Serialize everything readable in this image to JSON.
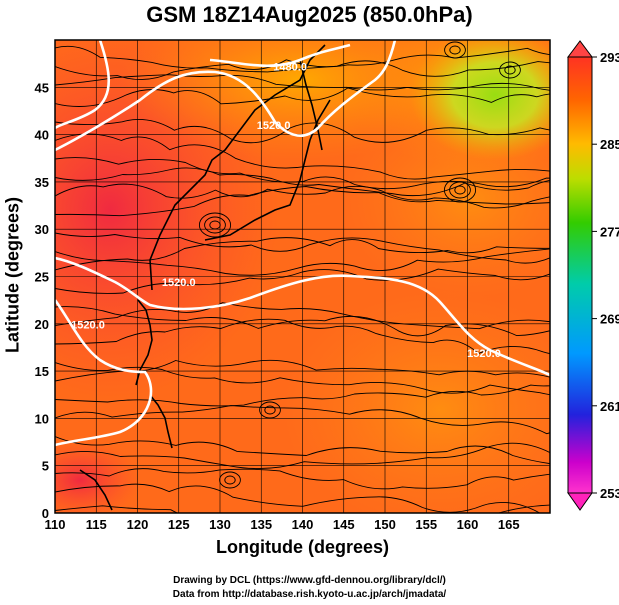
{
  "title": "GSM 18Z14Aug2025 (850.0hPa)",
  "xlabel": "Longitude (degrees)",
  "ylabel": "Latitude  (degrees)",
  "credits": {
    "line1": "Drawing by DCL (https://www.gfd-dennou.org/library/dcl/)",
    "line2": "Data from http://database.rish.kyoto-u.ac.jp/arch/jmadata/"
  },
  "chart_data": {
    "type": "heatmap",
    "variable": "temperature with geopotential height contours and wind streamlines",
    "xlim": [
      110,
      170
    ],
    "ylim": [
      0,
      50
    ],
    "xticks": [
      "110",
      "115",
      "120",
      "125",
      "130",
      "135",
      "140",
      "145",
      "150",
      "155",
      "160",
      "165"
    ],
    "yticks": [
      "0",
      "5",
      "10",
      "15",
      "20",
      "25",
      "30",
      "35",
      "40",
      "45"
    ],
    "colorbar": {
      "min": 253,
      "max": 293,
      "tick_labels": [
        "293",
        "285",
        "277",
        "269",
        "261",
        "253"
      ]
    },
    "contour_labels": [
      {
        "text": "1480.0",
        "lon": 138.5,
        "lat": 46.8
      },
      {
        "text": "1520.0",
        "lon": 136.5,
        "lat": 40.6
      },
      {
        "text": "1520.0",
        "lon": 125.0,
        "lat": 24.0
      },
      {
        "text": "1520.0",
        "lon": 114.0,
        "lat": 19.5
      },
      {
        "text": "1520.0",
        "lon": 162.0,
        "lat": 16.5
      }
    ]
  }
}
